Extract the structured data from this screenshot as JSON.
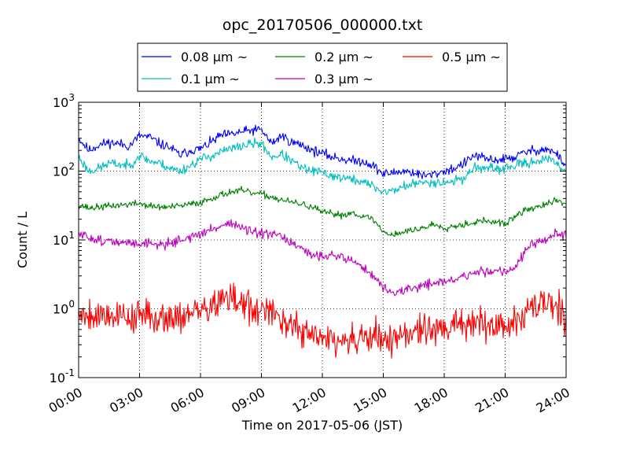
{
  "chart_data": {
    "type": "line",
    "title": "opc_20170506_000000.txt",
    "xlabel": "Time on 2017-05-06 (JST)",
    "ylabel": "Count / L",
    "x_ticks": [
      "00:00",
      "03:00",
      "06:00",
      "09:00",
      "12:00",
      "15:00",
      "18:00",
      "21:00",
      "24:00"
    ],
    "y_ticks": [
      {
        "value": 0.1,
        "base": "10",
        "exp": "-1"
      },
      {
        "value": 1,
        "base": "10",
        "exp": "0"
      },
      {
        "value": 10,
        "base": "10",
        "exp": "1"
      },
      {
        "value": 100,
        "base": "10",
        "exp": "2"
      },
      {
        "value": 1000,
        "base": "10",
        "exp": "3"
      }
    ],
    "xlim": [
      0,
      24
    ],
    "ylim": [
      0.1,
      1000
    ],
    "yscale": "log",
    "grid": true,
    "legend_position": "top-center",
    "legend_columns": 3,
    "legend_unit": "µm ~",
    "series": [
      {
        "name": "0.08",
        "color": "#0000ff",
        "noise": 0.035,
        "seed": 11,
        "x": [
          0,
          0.5,
          1,
          1.5,
          2,
          2.5,
          3,
          3.5,
          4,
          4.5,
          5,
          5.5,
          6,
          6.5,
          7,
          7.5,
          8,
          8.5,
          9,
          9.5,
          10,
          10.5,
          11,
          11.5,
          12,
          12.5,
          13,
          13.5,
          14,
          14.5,
          15,
          15.5,
          16,
          16.5,
          17,
          17.5,
          18,
          18.5,
          19,
          19.5,
          20,
          20.5,
          21,
          21.5,
          22,
          22.5,
          23,
          23.5,
          24
        ],
        "y": [
          300,
          200,
          240,
          260,
          250,
          230,
          330,
          310,
          250,
          220,
          170,
          200,
          210,
          260,
          330,
          340,
          370,
          390,
          400,
          250,
          330,
          260,
          240,
          200,
          180,
          160,
          150,
          140,
          140,
          120,
          90,
          95,
          100,
          95,
          85,
          90,
          100,
          110,
          130,
          170,
          150,
          145,
          150,
          160,
          190,
          200,
          210,
          180,
          120
        ]
      },
      {
        "name": "0.1",
        "color": "#00bfbf",
        "noise": 0.035,
        "seed": 23,
        "x": [
          0,
          0.5,
          1,
          1.5,
          2,
          2.5,
          3,
          3.5,
          4,
          4.5,
          5,
          5.5,
          6,
          6.5,
          7,
          7.5,
          8,
          8.5,
          9,
          9.5,
          10,
          10.5,
          11,
          11.5,
          12,
          12.5,
          13,
          13.5,
          14,
          14.5,
          15,
          15.5,
          16,
          16.5,
          17,
          17.5,
          18,
          18.5,
          19,
          19.5,
          20,
          20.5,
          21,
          21.5,
          22,
          22.5,
          23,
          23.5,
          24
        ],
        "y": [
          160,
          100,
          110,
          130,
          125,
          120,
          170,
          140,
          130,
          110,
          100,
          120,
          150,
          165,
          190,
          210,
          230,
          250,
          250,
          160,
          175,
          140,
          110,
          100,
          95,
          85,
          80,
          75,
          70,
          60,
          50,
          52,
          60,
          65,
          68,
          70,
          68,
          72,
          80,
          115,
          110,
          105,
          110,
          120,
          130,
          140,
          150,
          130,
          100
        ]
      },
      {
        "name": "0.2",
        "color": "#008000",
        "noise": 0.025,
        "seed": 37,
        "x": [
          0,
          0.5,
          1,
          1.5,
          2,
          2.5,
          3,
          3.5,
          4,
          4.5,
          5,
          5.5,
          6,
          6.5,
          7,
          7.5,
          8,
          8.5,
          9,
          9.5,
          10,
          10.5,
          11,
          11.5,
          12,
          12.5,
          13,
          13.5,
          14,
          14.5,
          15,
          15.5,
          16,
          16.5,
          17,
          17.5,
          18,
          18.5,
          19,
          19.5,
          20,
          20.5,
          21,
          21.5,
          22,
          22.5,
          23,
          23.5,
          24
        ],
        "y": [
          33,
          29,
          30,
          31,
          32,
          33,
          34,
          31,
          30,
          30,
          31,
          33,
          35,
          40,
          45,
          50,
          52,
          48,
          46,
          42,
          38,
          35,
          33,
          30,
          25,
          24,
          23,
          25,
          22,
          20,
          13,
          12,
          13,
          14,
          15,
          17,
          15,
          16,
          17,
          18,
          19,
          18,
          17,
          22,
          27,
          30,
          32,
          38,
          33
        ]
      },
      {
        "name": "0.3",
        "color": "#bf00bf",
        "noise": 0.035,
        "seed": 51,
        "x": [
          0,
          0.5,
          1,
          1.5,
          2,
          2.5,
          3,
          3.5,
          4,
          4.5,
          5,
          5.5,
          6,
          6.5,
          7,
          7.5,
          8,
          8.5,
          9,
          9.5,
          10,
          10.5,
          11,
          11.5,
          12,
          12.5,
          13,
          13.5,
          14,
          14.5,
          15,
          15.5,
          16,
          16.5,
          17,
          17.5,
          18,
          18.5,
          19,
          19.5,
          20,
          20.5,
          21,
          21.5,
          22,
          22.5,
          23,
          23.5,
          24
        ],
        "y": [
          12,
          11,
          10,
          9.5,
          9,
          9,
          9,
          9,
          8.5,
          9,
          10,
          11,
          12,
          14,
          16,
          18,
          15,
          13,
          12,
          12,
          11,
          9,
          7,
          6,
          6,
          6,
          5.5,
          5,
          4,
          3,
          2,
          1.7,
          1.8,
          2,
          2.2,
          2.4,
          2.5,
          2.6,
          3,
          3.3,
          3.5,
          3.6,
          3.5,
          4,
          7,
          9,
          9.5,
          13,
          11
        ]
      },
      {
        "name": "0.5",
        "color": "#ff0000",
        "noise": 0.12,
        "seed": 79,
        "x": [
          0,
          0.5,
          1,
          1.5,
          2,
          2.5,
          3,
          3.5,
          4,
          4.5,
          5,
          5.5,
          6,
          6.5,
          7,
          7.5,
          8,
          8.5,
          9,
          9.5,
          10,
          10.5,
          11,
          11.5,
          12,
          12.5,
          13,
          13.5,
          14,
          14.5,
          15,
          15.5,
          16,
          16.5,
          17,
          17.5,
          18,
          18.5,
          19,
          19.5,
          20,
          20.5,
          21,
          21.5,
          22,
          22.5,
          23,
          23.5,
          24
        ],
        "y": [
          0.9,
          0.85,
          0.8,
          0.85,
          0.8,
          0.75,
          0.8,
          0.75,
          0.78,
          0.75,
          0.8,
          0.85,
          0.9,
          1.1,
          1.3,
          1.4,
          1.2,
          1.0,
          0.9,
          0.8,
          0.75,
          0.6,
          0.45,
          0.4,
          0.38,
          0.35,
          0.33,
          0.32,
          0.35,
          0.4,
          0.35,
          0.38,
          0.42,
          0.45,
          0.48,
          0.5,
          0.52,
          0.55,
          0.58,
          0.62,
          0.6,
          0.58,
          0.6,
          0.65,
          0.8,
          1.1,
          1.3,
          1.1,
          0.8
        ]
      }
    ]
  }
}
